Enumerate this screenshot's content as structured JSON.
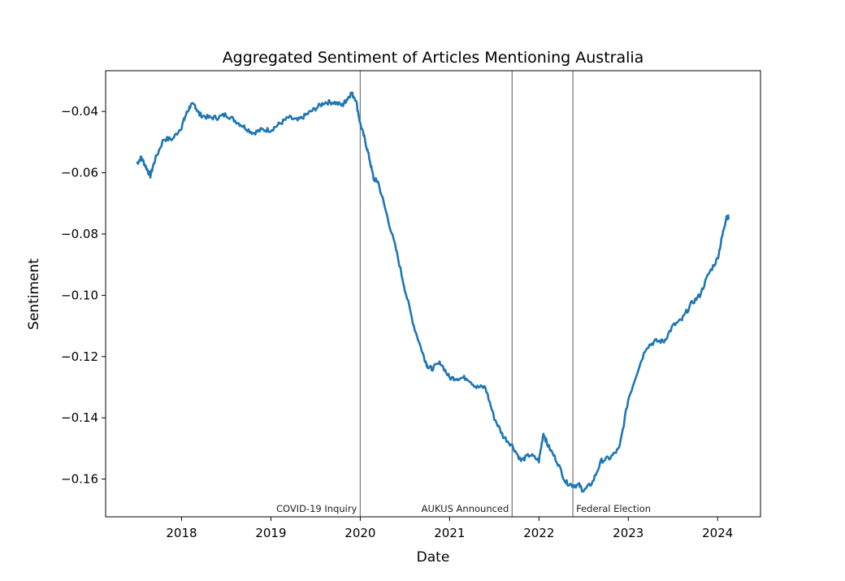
{
  "chart_data": {
    "type": "line",
    "title": "Aggregated Sentiment of Articles Mentioning Australia",
    "xlabel": "Date",
    "ylabel": "Sentiment",
    "xlim": [
      2017.15,
      2024.48
    ],
    "ylim": [
      -0.1723,
      -0.0267
    ],
    "x_ticks": [
      {
        "value": 2018.0,
        "label": "2018"
      },
      {
        "value": 2019.0,
        "label": "2019"
      },
      {
        "value": 2020.0,
        "label": "2020"
      },
      {
        "value": 2021.0,
        "label": "2021"
      },
      {
        "value": 2022.0,
        "label": "2022"
      },
      {
        "value": 2023.0,
        "label": "2023"
      },
      {
        "value": 2024.0,
        "label": "2024"
      }
    ],
    "y_ticks": [
      {
        "value": -0.04,
        "label": "−0.04"
      },
      {
        "value": -0.06,
        "label": "−0.06"
      },
      {
        "value": -0.08,
        "label": "−0.08"
      },
      {
        "value": -0.1,
        "label": "−0.10"
      },
      {
        "value": -0.12,
        "label": "−0.12"
      },
      {
        "value": -0.14,
        "label": "−0.14"
      },
      {
        "value": -0.16,
        "label": "−0.16"
      }
    ],
    "grid": false,
    "colors": {
      "line": "#1f77b4",
      "annotation": "#808080"
    },
    "annotations": [
      {
        "x": 2020.0,
        "label": "COVID-19 Inquiry",
        "align": "left"
      },
      {
        "x": 2021.7,
        "label": "AUKUS Announced",
        "align": "left"
      },
      {
        "x": 2022.38,
        "label": "Federal Election",
        "align": "right"
      }
    ],
    "series": [
      {
        "x": [
          2017.5,
          2017.55,
          2017.6,
          2017.65,
          2017.7,
          2017.8,
          2017.9,
          2018.0,
          2018.05,
          2018.1,
          2018.15,
          2018.2,
          2018.3,
          2018.4,
          2018.5,
          2018.6,
          2018.7,
          2018.8,
          2018.9,
          2019.0,
          2019.1,
          2019.2,
          2019.3,
          2019.4,
          2019.5,
          2019.6,
          2019.7,
          2019.8,
          2019.85,
          2019.9,
          2019.95,
          2020.0,
          2020.05,
          2020.1,
          2020.15,
          2020.2,
          2020.3,
          2020.4,
          2020.5,
          2020.6,
          2020.7,
          2020.75,
          2020.8,
          2020.9,
          2021.0,
          2021.1,
          2021.2,
          2021.3,
          2021.4,
          2021.5,
          2021.6,
          2021.7,
          2021.8,
          2021.9,
          2022.0,
          2022.05,
          2022.1,
          2022.2,
          2022.3,
          2022.38,
          2022.45,
          2022.5,
          2022.6,
          2022.7,
          2022.8,
          2022.9,
          2023.0,
          2023.1,
          2023.2,
          2023.3,
          2023.4,
          2023.5,
          2023.6,
          2023.7,
          2023.8,
          2023.9,
          2024.0,
          2024.05,
          2024.1,
          2024.13
        ],
        "y": [
          -0.057,
          -0.055,
          -0.058,
          -0.061,
          -0.056,
          -0.049,
          -0.049,
          -0.045,
          -0.041,
          -0.038,
          -0.038,
          -0.041,
          -0.042,
          -0.042,
          -0.041,
          -0.043,
          -0.045,
          -0.047,
          -0.046,
          -0.046,
          -0.044,
          -0.042,
          -0.043,
          -0.041,
          -0.039,
          -0.037,
          -0.037,
          -0.038,
          -0.036,
          -0.034,
          -0.036,
          -0.044,
          -0.049,
          -0.055,
          -0.062,
          -0.063,
          -0.074,
          -0.085,
          -0.098,
          -0.11,
          -0.119,
          -0.123,
          -0.124,
          -0.122,
          -0.127,
          -0.127,
          -0.127,
          -0.13,
          -0.13,
          -0.14,
          -0.146,
          -0.149,
          -0.154,
          -0.152,
          -0.154,
          -0.145,
          -0.149,
          -0.154,
          -0.161,
          -0.162,
          -0.162,
          -0.164,
          -0.161,
          -0.154,
          -0.153,
          -0.15,
          -0.134,
          -0.125,
          -0.117,
          -0.115,
          -0.115,
          -0.11,
          -0.108,
          -0.103,
          -0.1,
          -0.093,
          -0.088,
          -0.081,
          -0.074,
          -0.075
        ]
      }
    ]
  }
}
